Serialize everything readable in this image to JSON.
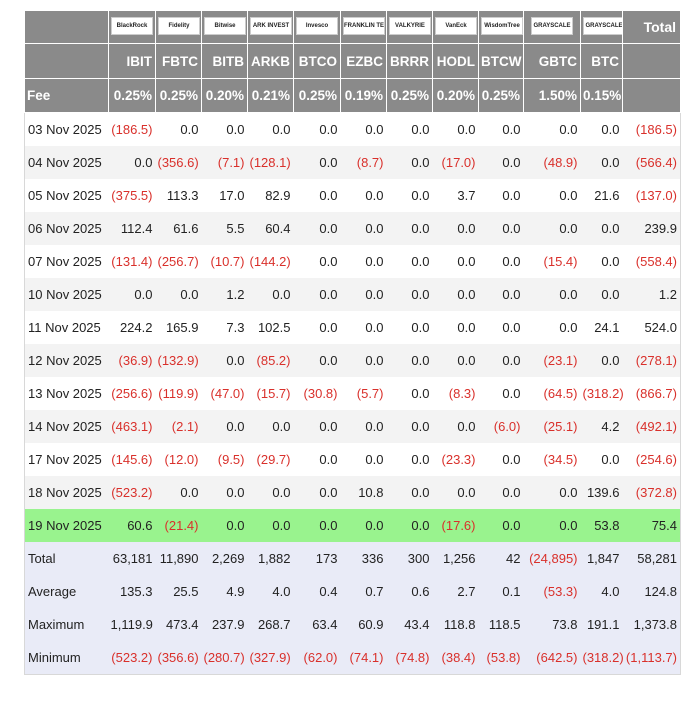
{
  "header": {
    "logos": [
      "BlackRock",
      "Fidelity",
      "Bitwise",
      "ARK INVEST",
      "Invesco",
      "FRANKLIN TEMPLETON",
      "VALKYRIE",
      "VanEck",
      "WisdomTree",
      "GRAYSCALE",
      "GRAYSCALE"
    ],
    "total_label": "Total",
    "tickers": [
      "IBIT",
      "FBTC",
      "BITB",
      "ARKB",
      "BTCO",
      "EZBC",
      "BRRR",
      "HODL",
      "BTCW",
      "GBTC",
      "BTC"
    ],
    "fee_label": "Fee",
    "fees": [
      "0.25%",
      "0.25%",
      "0.20%",
      "0.21%",
      "0.25%",
      "0.19%",
      "0.25%",
      "0.20%",
      "0.25%",
      "1.50%",
      "0.15%"
    ]
  },
  "rows": [
    {
      "label": "03 Nov 2025",
      "values": [
        "(186.5)",
        "0.0",
        "0.0",
        "0.0",
        "0.0",
        "0.0",
        "0.0",
        "0.0",
        "0.0",
        "0.0",
        "0.0",
        "(186.5)"
      ]
    },
    {
      "label": "04 Nov 2025",
      "values": [
        "0.0",
        "(356.6)",
        "(7.1)",
        "(128.1)",
        "0.0",
        "(8.7)",
        "0.0",
        "(17.0)",
        "0.0",
        "(48.9)",
        "0.0",
        "(566.4)"
      ]
    },
    {
      "label": "05 Nov 2025",
      "values": [
        "(375.5)",
        "113.3",
        "17.0",
        "82.9",
        "0.0",
        "0.0",
        "0.0",
        "3.7",
        "0.0",
        "0.0",
        "21.6",
        "(137.0)"
      ]
    },
    {
      "label": "06 Nov 2025",
      "values": [
        "112.4",
        "61.6",
        "5.5",
        "60.4",
        "0.0",
        "0.0",
        "0.0",
        "0.0",
        "0.0",
        "0.0",
        "0.0",
        "239.9"
      ]
    },
    {
      "label": "07 Nov 2025",
      "values": [
        "(131.4)",
        "(256.7)",
        "(10.7)",
        "(144.2)",
        "0.0",
        "0.0",
        "0.0",
        "0.0",
        "0.0",
        "(15.4)",
        "0.0",
        "(558.4)"
      ]
    },
    {
      "label": "10 Nov 2025",
      "values": [
        "0.0",
        "0.0",
        "1.2",
        "0.0",
        "0.0",
        "0.0",
        "0.0",
        "0.0",
        "0.0",
        "0.0",
        "0.0",
        "1.2"
      ]
    },
    {
      "label": "11 Nov 2025",
      "values": [
        "224.2",
        "165.9",
        "7.3",
        "102.5",
        "0.0",
        "0.0",
        "0.0",
        "0.0",
        "0.0",
        "0.0",
        "24.1",
        "524.0"
      ]
    },
    {
      "label": "12 Nov 2025",
      "values": [
        "(36.9)",
        "(132.9)",
        "0.0",
        "(85.2)",
        "0.0",
        "0.0",
        "0.0",
        "0.0",
        "0.0",
        "(23.1)",
        "0.0",
        "(278.1)"
      ]
    },
    {
      "label": "13 Nov 2025",
      "values": [
        "(256.6)",
        "(119.9)",
        "(47.0)",
        "(15.7)",
        "(30.8)",
        "(5.7)",
        "0.0",
        "(8.3)",
        "0.0",
        "(64.5)",
        "(318.2)",
        "(866.7)"
      ]
    },
    {
      "label": "14 Nov 2025",
      "values": [
        "(463.1)",
        "(2.1)",
        "0.0",
        "0.0",
        "0.0",
        "0.0",
        "0.0",
        "0.0",
        "(6.0)",
        "(25.1)",
        "4.2",
        "(492.1)"
      ]
    },
    {
      "label": "17 Nov 2025",
      "values": [
        "(145.6)",
        "(12.0)",
        "(9.5)",
        "(29.7)",
        "0.0",
        "0.0",
        "0.0",
        "(23.3)",
        "0.0",
        "(34.5)",
        "0.0",
        "(254.6)"
      ]
    },
    {
      "label": "18 Nov 2025",
      "values": [
        "(523.2)",
        "0.0",
        "0.0",
        "0.0",
        "0.0",
        "10.8",
        "0.0",
        "0.0",
        "0.0",
        "0.0",
        "139.6",
        "(372.8)"
      ]
    },
    {
      "label": "19 Nov 2025",
      "values": [
        "60.6",
        "(21.4)",
        "0.0",
        "0.0",
        "0.0",
        "0.0",
        "0.0",
        "(17.6)",
        "0.0",
        "0.0",
        "53.8",
        "75.4"
      ]
    }
  ],
  "summary": [
    {
      "label": "Total",
      "values": [
        "63,181",
        "11,890",
        "2,269",
        "1,882",
        "173",
        "336",
        "300",
        "1,256",
        "42",
        "(24,895)",
        "1,847",
        "58,281"
      ]
    },
    {
      "label": "Average",
      "values": [
        "135.3",
        "25.5",
        "4.9",
        "4.0",
        "0.4",
        "0.7",
        "0.6",
        "2.7",
        "0.1",
        "(53.3)",
        "4.0",
        "124.8"
      ]
    },
    {
      "label": "Maximum",
      "values": [
        "1,119.9",
        "473.4",
        "237.9",
        "268.7",
        "63.4",
        "60.9",
        "43.4",
        "118.8",
        "118.5",
        "73.8",
        "191.1",
        "1,373.8"
      ]
    },
    {
      "label": "Minimum",
      "values": [
        "(523.2)",
        "(356.6)",
        "(280.7)",
        "(327.9)",
        "(62.0)",
        "(74.1)",
        "(74.8)",
        "(38.4)",
        "(53.8)",
        "(642.5)",
        "(318.2)",
        "(1,113.7)"
      ]
    }
  ]
}
